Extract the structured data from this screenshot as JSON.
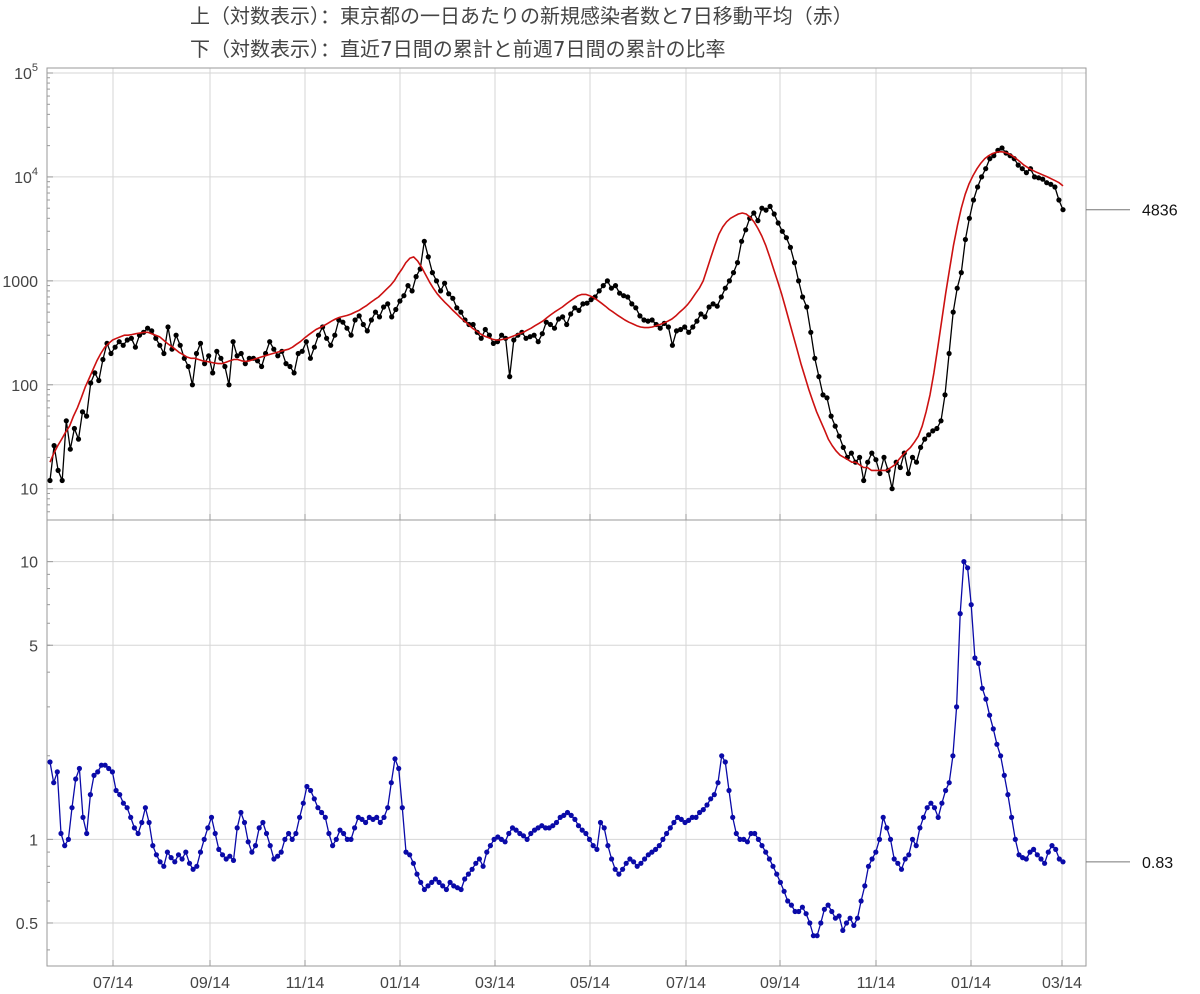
{
  "titles": [
    "上（対数表示）：東京都の一日あたりの新規感染者数と7日移動平均（赤）",
    "下（対数表示）：直近7日間の累計と前週7日間の累計の比率"
  ],
  "colors": {
    "daily": "#000000",
    "avg": "#cc1111",
    "ratio": "#0a0aa8",
    "grid": "#d6d6d6",
    "frame": "#9a9a9a"
  },
  "chart_data": [
    {
      "type": "line",
      "scale": "log",
      "ylim": [
        5,
        100000
      ],
      "x_ticks": [
        "07/14",
        "09/14",
        "11/14",
        "01/14",
        "03/14",
        "05/14",
        "07/14",
        "09/14",
        "11/14",
        "01/14",
        "03/14"
      ],
      "y_ticks": [
        {
          "value": 10,
          "label": "10"
        },
        {
          "value": 100,
          "label": "100"
        },
        {
          "value": 1000,
          "label": "1000"
        },
        {
          "value": 10000,
          "label": "10",
          "sup": "4"
        },
        {
          "value": 100000,
          "label": "10",
          "sup": "5"
        }
      ],
      "latest_label": "4836",
      "series": [
        {
          "key": "daily",
          "values": [
            12,
            26,
            15,
            12,
            45,
            24,
            38,
            30,
            55,
            50,
            104,
            130,
            110,
            175,
            250,
            200,
            230,
            260,
            240,
            270,
            280,
            230,
            300,
            320,
            350,
            330,
            280,
            240,
            200,
            360,
            220,
            300,
            240,
            180,
            150,
            100,
            200,
            250,
            160,
            190,
            130,
            210,
            180,
            150,
            100,
            260,
            190,
            200,
            160,
            180,
            180,
            170,
            150,
            200,
            260,
            220,
            190,
            210,
            160,
            150,
            130,
            200,
            210,
            260,
            180,
            230,
            300,
            360,
            280,
            240,
            300,
            420,
            400,
            350,
            300,
            420,
            460,
            380,
            330,
            420,
            500,
            450,
            560,
            600,
            450,
            530,
            640,
            720,
            900,
            800,
            1100,
            1300,
            2400,
            1700,
            1200,
            1000,
            800,
            950,
            750,
            680,
            550,
            500,
            420,
            380,
            380,
            320,
            280,
            340,
            300,
            250,
            260,
            300,
            280,
            120,
            270,
            300,
            320,
            280,
            290,
            300,
            260,
            310,
            400,
            380,
            350,
            430,
            450,
            380,
            480,
            550,
            520,
            600,
            610,
            660,
            700,
            800,
            900,
            1000,
            850,
            900,
            760,
            720,
            700,
            600,
            550,
            460,
            420,
            410,
            420,
            380,
            350,
            390,
            360,
            240,
            330,
            340,
            360,
            320,
            360,
            410,
            480,
            450,
            560,
            600,
            570,
            700,
            850,
            1000,
            1200,
            1500,
            2400,
            3100,
            4000,
            4500,
            3800,
            5000,
            4800,
            5200,
            4400,
            3600,
            3000,
            2600,
            2100,
            1500,
            1000,
            700,
            560,
            320,
            180,
            120,
            80,
            75,
            50,
            40,
            32,
            25,
            20,
            22,
            18,
            20,
            12,
            18,
            22,
            19,
            14,
            20,
            15,
            10,
            18,
            16,
            22,
            14,
            20,
            18,
            25,
            30,
            33,
            36,
            38,
            45,
            80,
            200,
            500,
            850,
            1200,
            2500,
            4000,
            6000,
            8000,
            10000,
            12000,
            15000,
            16000,
            18000,
            19000,
            17000,
            16000,
            15000,
            13000,
            12000,
            11000,
            12000,
            10000,
            9800,
            9500,
            8800,
            8500,
            8000,
            6000,
            4836
          ]
        },
        {
          "key": "avg",
          "values": [
            18,
            22,
            26,
            30,
            35,
            40,
            50,
            60,
            75,
            95,
            115,
            140,
            170,
            200,
            230,
            250,
            270,
            280,
            290,
            300,
            300,
            305,
            310,
            315,
            320,
            320,
            310,
            300,
            290,
            270,
            250,
            235,
            220,
            205,
            195,
            185,
            180,
            180,
            175,
            170,
            168,
            165,
            162,
            160,
            160,
            165,
            170,
            175,
            175,
            170,
            168,
            170,
            175,
            180,
            185,
            190,
            195,
            200,
            205,
            210,
            215,
            220,
            230,
            245,
            260,
            280,
            300,
            320,
            340,
            355,
            370,
            390,
            410,
            430,
            445,
            455,
            465,
            480,
            500,
            520,
            550,
            580,
            620,
            660,
            700,
            760,
            830,
            900,
            1000,
            1150,
            1300,
            1500,
            1650,
            1700,
            1550,
            1350,
            1150,
            980,
            850,
            750,
            680,
            620,
            570,
            520,
            480,
            440,
            410,
            380,
            350,
            330,
            310,
            295,
            285,
            275,
            270,
            270,
            275,
            280,
            290,
            300,
            310,
            320,
            335,
            350,
            370,
            390,
            410,
            440,
            470,
            500,
            530,
            560,
            600,
            640,
            680,
            720,
            740,
            740,
            720,
            690,
            650,
            610,
            570,
            530,
            500,
            470,
            445,
            420,
            400,
            385,
            370,
            360,
            355,
            355,
            360,
            370,
            380,
            395,
            410,
            430,
            460,
            500,
            540,
            590,
            660,
            750,
            850,
            1000,
            1300,
            1700,
            2200,
            2800,
            3300,
            3700,
            4000,
            4200,
            4400,
            4500,
            4400,
            4100,
            3700,
            3200,
            2700,
            2200,
            1700,
            1300,
            1000,
            760,
            560,
            410,
            300,
            220,
            160,
            120,
            90,
            70,
            55,
            45,
            37,
            30,
            26,
            23,
            21,
            20,
            19,
            18,
            18,
            17,
            16,
            16,
            15,
            15,
            15,
            15,
            15,
            16,
            17,
            19,
            21,
            23,
            25,
            28,
            32,
            40,
            55,
            80,
            130,
            230,
            420,
            760,
            1300,
            2200,
            3400,
            5000,
            6800,
            8600,
            10300,
            12000,
            13600,
            15000,
            16000,
            16800,
            17300,
            17500,
            17300,
            16800,
            16000,
            15000,
            14000,
            13000,
            12300,
            11700,
            11200,
            10800,
            10400,
            10000,
            9600,
            9200,
            8800,
            8200
          ]
        }
      ]
    },
    {
      "type": "line",
      "scale": "log",
      "ylim": [
        0.35,
        13
      ],
      "x_ticks": [
        "07/14",
        "09/14",
        "11/14",
        "01/14",
        "03/14",
        "05/14",
        "07/14",
        "09/14",
        "11/14",
        "01/14",
        "03/14"
      ],
      "y_ticks": [
        {
          "value": 0.5,
          "label": "0.5"
        },
        {
          "value": 1,
          "label": "1"
        },
        {
          "value": 5,
          "label": "5"
        },
        {
          "value": 10,
          "label": "10"
        }
      ],
      "latest_label": "0.83",
      "series": [
        {
          "key": "ratio",
          "values": [
            1.9,
            1.6,
            1.75,
            1.05,
            0.95,
            1.0,
            1.3,
            1.65,
            1.8,
            1.2,
            1.05,
            1.45,
            1.7,
            1.75,
            1.85,
            1.85,
            1.8,
            1.75,
            1.5,
            1.45,
            1.35,
            1.3,
            1.2,
            1.1,
            1.05,
            1.15,
            1.3,
            1.15,
            0.95,
            0.88,
            0.83,
            0.8,
            0.9,
            0.86,
            0.83,
            0.88,
            0.85,
            0.9,
            0.82,
            0.78,
            0.8,
            0.9,
            1.0,
            1.1,
            1.2,
            1.05,
            0.92,
            0.88,
            0.85,
            0.87,
            0.84,
            1.1,
            1.25,
            1.15,
            0.98,
            0.9,
            0.95,
            1.1,
            1.15,
            1.05,
            0.95,
            0.85,
            0.87,
            0.9,
            1.0,
            1.05,
            1.0,
            1.05,
            1.2,
            1.35,
            1.55,
            1.5,
            1.4,
            1.3,
            1.25,
            1.2,
            1.05,
            0.95,
            1.0,
            1.08,
            1.05,
            1.0,
            1.0,
            1.1,
            1.2,
            1.18,
            1.15,
            1.2,
            1.18,
            1.2,
            1.15,
            1.2,
            1.3,
            1.6,
            1.95,
            1.8,
            1.3,
            0.9,
            0.88,
            0.82,
            0.75,
            0.7,
            0.66,
            0.68,
            0.7,
            0.72,
            0.7,
            0.68,
            0.66,
            0.7,
            0.68,
            0.67,
            0.66,
            0.72,
            0.75,
            0.78,
            0.82,
            0.85,
            0.8,
            0.9,
            0.95,
            1.0,
            1.02,
            1.0,
            0.98,
            1.05,
            1.1,
            1.08,
            1.05,
            1.03,
            1.0,
            1.05,
            1.08,
            1.1,
            1.12,
            1.1,
            1.1,
            1.12,
            1.15,
            1.2,
            1.22,
            1.25,
            1.22,
            1.18,
            1.12,
            1.08,
            1.05,
            1.0,
            0.95,
            0.92,
            1.15,
            1.1,
            0.95,
            0.85,
            0.78,
            0.75,
            0.78,
            0.82,
            0.85,
            0.83,
            0.8,
            0.82,
            0.85,
            0.88,
            0.9,
            0.92,
            0.95,
            1.0,
            1.05,
            1.1,
            1.15,
            1.2,
            1.18,
            1.15,
            1.17,
            1.2,
            1.2,
            1.25,
            1.28,
            1.33,
            1.4,
            1.45,
            1.6,
            2.0,
            1.9,
            1.5,
            1.2,
            1.05,
            1.0,
            1.0,
            0.98,
            1.05,
            1.05,
            1.0,
            0.95,
            0.9,
            0.85,
            0.8,
            0.75,
            0.7,
            0.65,
            0.6,
            0.58,
            0.55,
            0.55,
            0.57,
            0.54,
            0.5,
            0.45,
            0.45,
            0.5,
            0.56,
            0.58,
            0.55,
            0.52,
            0.53,
            0.47,
            0.5,
            0.52,
            0.49,
            0.52,
            0.6,
            0.68,
            0.8,
            0.85,
            0.9,
            1.0,
            1.2,
            1.1,
            1.0,
            0.85,
            0.82,
            0.78,
            0.85,
            0.88,
            1.0,
            0.95,
            1.1,
            1.2,
            1.3,
            1.35,
            1.3,
            1.2,
            1.35,
            1.5,
            1.6,
            2.0,
            3.0,
            6.5,
            10.0,
            9.5,
            7.0,
            4.5,
            4.3,
            3.5,
            3.2,
            2.8,
            2.5,
            2.2,
            2.0,
            1.7,
            1.45,
            1.2,
            1.0,
            0.88,
            0.86,
            0.85,
            0.9,
            0.92,
            0.88,
            0.85,
            0.82,
            0.9,
            0.95,
            0.92,
            0.85,
            0.83
          ]
        }
      ]
    }
  ]
}
